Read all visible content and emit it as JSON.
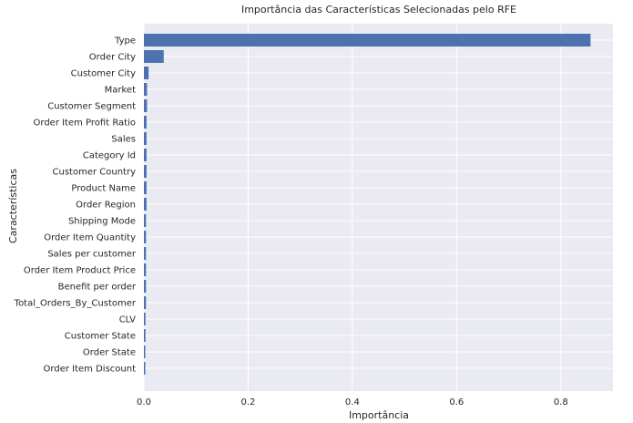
{
  "chart_data": {
    "type": "bar",
    "orientation": "horizontal",
    "title": "Importância das Características Selecionadas pelo RFE",
    "xlabel": "Importância",
    "ylabel": "Características",
    "xlim": [
      0,
      0.9
    ],
    "xticks": [
      0.0,
      0.2,
      0.4,
      0.6,
      0.8
    ],
    "xtick_labels": [
      "0.0",
      "0.2",
      "0.4",
      "0.6",
      "0.8"
    ],
    "grid": true,
    "style": "seaborn-darkgrid",
    "colors": {
      "bar": "#4c72b0",
      "plot_background": "#eaeaf2",
      "grid": "#ffffff",
      "text": "#262626"
    },
    "categories": [
      "Type",
      "Order City",
      "Customer City",
      "Market",
      "Customer Segment",
      "Order Item Profit Ratio",
      "Sales",
      "Category Id",
      "Customer Country",
      "Product Name",
      "Order Region",
      "Shipping Mode",
      "Order Item Quantity",
      "Sales per customer",
      "Order Item Product Price",
      "Benefit per order",
      "Total_Orders_By_Customer",
      "CLV",
      "Customer State",
      "Order State",
      "Order Item Discount"
    ],
    "values": [
      0.857,
      0.038,
      0.009,
      0.006,
      0.006,
      0.005,
      0.005,
      0.005,
      0.005,
      0.005,
      0.005,
      0.004,
      0.004,
      0.004,
      0.004,
      0.004,
      0.004,
      0.003,
      0.003,
      0.002,
      0.002
    ]
  }
}
